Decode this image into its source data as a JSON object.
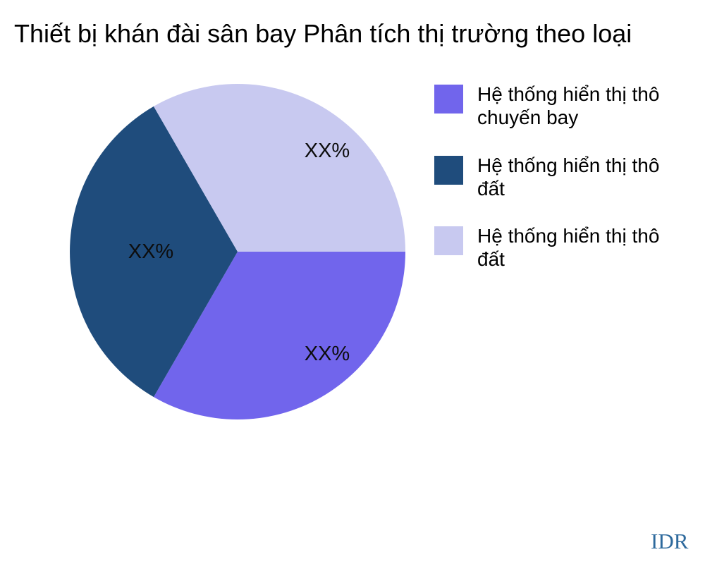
{
  "title": "Thiết bị khán đài sân bay Phân tích thị trường theo loại",
  "watermark": {
    "text": "IDR",
    "color": "#2E6A9D"
  },
  "chart_data": {
    "type": "pie",
    "title": "Thiết bị khán đài sân bay Phân tích thị trường theo loại",
    "legend_position": "right",
    "start_angle_deg": 0,
    "direction": "clockwise",
    "slices": [
      {
        "label_lines": [
          "Hệ thống hiển thị thô",
          "chuyến bay"
        ],
        "value": 33.33,
        "display_label": "XX%",
        "color": "#7165EC"
      },
      {
        "label_lines": [
          "Hệ thống hiển thị thô",
          "đất"
        ],
        "value": 33.33,
        "display_label": "XX%",
        "color": "#1F4C7C"
      },
      {
        "label_lines": [
          "Hệ thống hiển thị thô",
          "đất"
        ],
        "value": 33.33,
        "display_label": "XX%",
        "color": "#C8C9F0"
      }
    ]
  }
}
